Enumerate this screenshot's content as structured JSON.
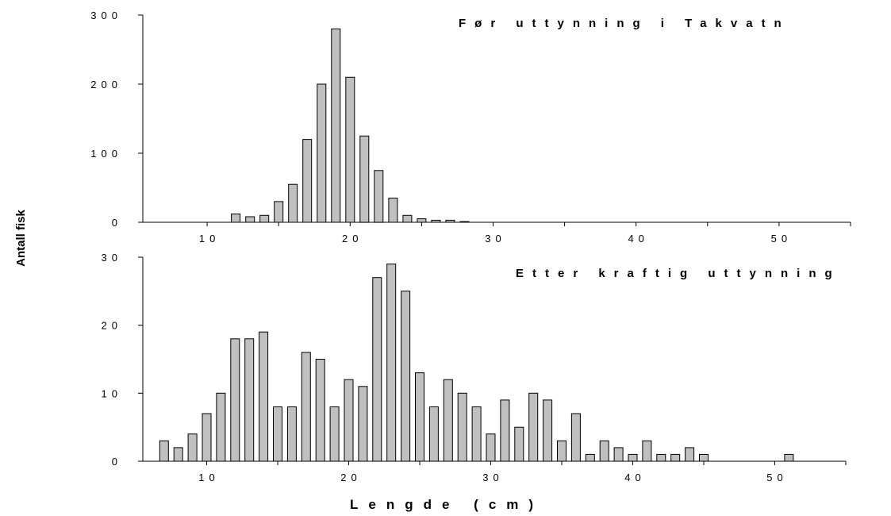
{
  "chart_data": [
    {
      "type": "bar",
      "title": "Før uttynning i Takvatn",
      "xlabel": "",
      "ylabel": "",
      "xlim": [
        5.5,
        55
      ],
      "ylim": [
        0,
        300
      ],
      "y_ticks": [
        0,
        100,
        200,
        300
      ],
      "x_ticks": [
        10,
        20,
        30,
        40,
        50
      ],
      "x": [
        12,
        13,
        14,
        15,
        16,
        17,
        18,
        19,
        20,
        21,
        22,
        23,
        24,
        25,
        26,
        27,
        28
      ],
      "values": [
        12,
        8,
        10,
        30,
        55,
        120,
        200,
        280,
        210,
        125,
        75,
        35,
        10,
        5,
        3,
        3,
        1
      ]
    },
    {
      "type": "bar",
      "title": "Etter kraftig uttynning",
      "xlabel": "",
      "ylabel": "",
      "xlim": [
        5.5,
        55
      ],
      "ylim": [
        0,
        30
      ],
      "y_ticks": [
        0,
        10,
        20,
        30
      ],
      "x_ticks": [
        10,
        20,
        30,
        40,
        50
      ],
      "x": [
        7,
        8,
        9,
        10,
        11,
        12,
        13,
        14,
        15,
        16,
        17,
        18,
        19,
        20,
        21,
        22,
        23,
        24,
        25,
        26,
        27,
        28,
        29,
        30,
        31,
        32,
        33,
        34,
        35,
        36,
        37,
        38,
        39,
        40,
        41,
        42,
        43,
        44,
        45,
        51
      ],
      "values": [
        3,
        2,
        4,
        7,
        10,
        18,
        18,
        19,
        8,
        8,
        16,
        15,
        8,
        12,
        11,
        27,
        29,
        25,
        13,
        8,
        12,
        10,
        8,
        4,
        9,
        5,
        10,
        9,
        3,
        7,
        1,
        3,
        2,
        1,
        3,
        1,
        1,
        2,
        1,
        1
      ]
    }
  ],
  "shared": {
    "ylabel": "Antall fisk",
    "xlabel": "Lengde (cm)"
  }
}
